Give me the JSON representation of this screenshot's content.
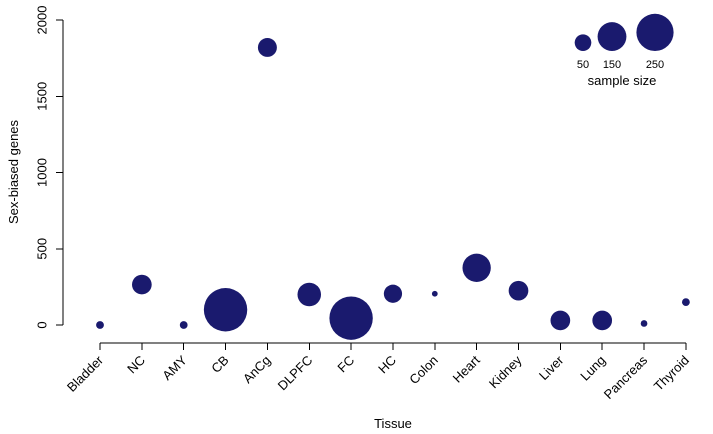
{
  "chart_data": {
    "type": "scatter",
    "title": "",
    "xlabel": "Tissue",
    "ylabel": "Sex-biased genes",
    "categories": [
      "Bladder",
      "NC",
      "AMY",
      "CB",
      "AnCg",
      "DLPFC",
      "FC",
      "HC",
      "Colon",
      "Heart",
      "Kidney",
      "Liver",
      "Lung",
      "Pancreas",
      "Thyroid"
    ],
    "ylim": [
      0,
      2000
    ],
    "yticks": [
      "0",
      "500",
      "1000",
      "1500",
      "2000"
    ],
    "grid": false,
    "color": "#1a1a6e",
    "size_variable": "sample size",
    "points": [
      {
        "x": "Bladder",
        "y": 0,
        "size": 11
      },
      {
        "x": "NC",
        "y": 265,
        "size": 70
      },
      {
        "x": "AMY",
        "y": 0,
        "size": 11
      },
      {
        "x": "CB",
        "y": 100,
        "size": 340
      },
      {
        "x": "AnCg",
        "y": 1820,
        "size": 65
      },
      {
        "x": "DLPFC",
        "y": 200,
        "size": 100
      },
      {
        "x": "FC",
        "y": 45,
        "size": 340
      },
      {
        "x": "HC",
        "y": 205,
        "size": 60
      },
      {
        "x": "Colon",
        "y": 205,
        "size": 6
      },
      {
        "x": "Heart",
        "y": 375,
        "size": 145
      },
      {
        "x": "Kidney",
        "y": 225,
        "size": 70
      },
      {
        "x": "Liver",
        "y": 30,
        "size": 70
      },
      {
        "x": "Lung",
        "y": 30,
        "size": 70
      },
      {
        "x": "Pancreas",
        "y": 10,
        "size": 8
      },
      {
        "x": "Thyroid",
        "y": 150,
        "size": 11
      }
    ],
    "legend": {
      "title": "sample size",
      "placement": "top-right",
      "entries": [
        {
          "label": "50",
          "size": 50
        },
        {
          "label": "150",
          "size": 150
        },
        {
          "label": "250",
          "size": 250
        }
      ]
    }
  }
}
